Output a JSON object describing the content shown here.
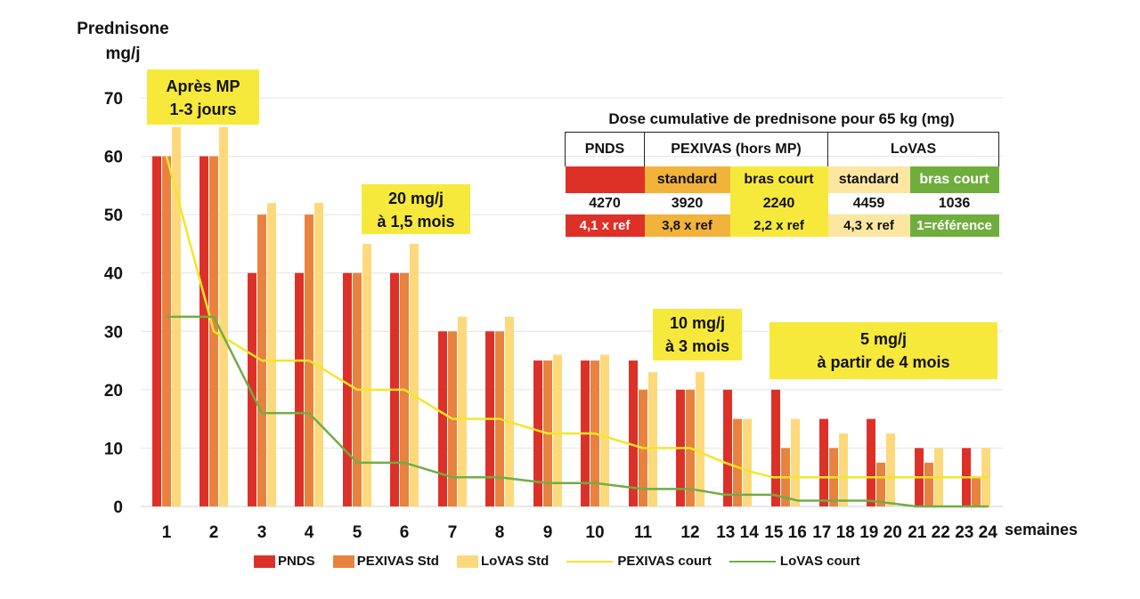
{
  "y_axis_title_line1": "Prednisone",
  "y_axis_title_line2": "mg/j",
  "x_axis_unit": "semaines",
  "annotations": {
    "mp": [
      "Après MP",
      "1-3 jours"
    ],
    "m15": [
      "20 mg/j",
      "à 1,5 mois"
    ],
    "m3": [
      "10 mg/j",
      "à 3 mois"
    ],
    "m4": [
      "5 mg/j",
      "à partir de 4 mois"
    ]
  },
  "dose_table": {
    "title": "Dose cumulative de prednisone pour 65 kg (mg)",
    "headers": [
      "PNDS",
      "PEXIVAS (hors MP)",
      "LoVAS"
    ],
    "subheaders": [
      "",
      "standard",
      "bras court",
      "standard",
      "bras court"
    ],
    "values": [
      "4270",
      "3920",
      "2240",
      "4459",
      "1036"
    ],
    "ratios": [
      "4,1 x ref",
      "3,8 x ref",
      "2,2 x ref",
      "4,3 x ref",
      "1=référence"
    ],
    "colors": [
      "#dd3128",
      "#f2b33a",
      "#f7e93b",
      "#fde7a0",
      "#6fae3d"
    ]
  },
  "colors": {
    "PNDS": "#dd3128",
    "PEXIVAS Std": "#e8823e",
    "LoVAS Std": "#fdd97c",
    "PEXIVAS court": "#f2e62a",
    "LoVAS court": "#71ac45",
    "annotation": "#f7e93b"
  },
  "chart_data": {
    "type": "bar",
    "title": "",
    "xlabel": "semaines",
    "ylabel": "Prednisone mg/j",
    "ylim": [
      0,
      70
    ],
    "yticks": [
      0,
      10,
      20,
      30,
      40,
      50,
      60,
      70
    ],
    "grid": true,
    "categories": [
      "1",
      "2",
      "3",
      "4",
      "5",
      "6",
      "7",
      "8",
      "9",
      "10",
      "11",
      "12",
      "13",
      "14",
      "15",
      "16",
      "17",
      "18",
      "19",
      "20",
      "21",
      "22",
      "23",
      "24"
    ],
    "group_labels": [
      "1",
      "2",
      "3",
      "4",
      "5",
      "6",
      "7",
      "8",
      "9",
      "10",
      "11",
      "12",
      "13 14",
      "15 16",
      "17 18",
      "19 20",
      "21 22",
      "23 24"
    ],
    "bar_series": [
      {
        "name": "PNDS",
        "values": [
          60,
          60,
          40,
          40,
          40,
          40,
          30,
          30,
          25,
          25,
          25,
          20,
          20,
          20,
          15,
          15,
          10,
          10
        ]
      },
      {
        "name": "PEXIVAS Std",
        "values": [
          60,
          60,
          50,
          50,
          40,
          40,
          30,
          30,
          25,
          25,
          20,
          20,
          15,
          10,
          10,
          7.5,
          7.5,
          5
        ]
      },
      {
        "name": "LoVAS Std",
        "values": [
          65,
          65,
          52,
          52,
          45,
          45,
          32.5,
          32.5,
          26,
          26,
          23,
          23,
          15,
          15,
          12.5,
          12.5,
          10,
          10
        ]
      }
    ],
    "line_series": [
      {
        "name": "PEXIVAS court",
        "x": [
          1,
          2,
          3,
          4,
          5,
          6,
          7,
          8,
          9,
          10,
          11,
          12,
          13,
          14,
          15,
          16,
          17,
          18,
          19,
          20,
          21,
          22,
          23,
          24
        ],
        "values": [
          60,
          30,
          25,
          25,
          20,
          20,
          15,
          15,
          12.5,
          12.5,
          10,
          10,
          7.5,
          6,
          5,
          5,
          5,
          5,
          5,
          5,
          5,
          5,
          5,
          5
        ]
      },
      {
        "name": "LoVAS court",
        "x": [
          1,
          2,
          3,
          4,
          5,
          6,
          7,
          8,
          9,
          10,
          11,
          12,
          13,
          14,
          15,
          16,
          17,
          18,
          19,
          20,
          21,
          22,
          23,
          24
        ],
        "values": [
          32.5,
          32.5,
          16,
          16,
          7.5,
          7.5,
          5,
          5,
          4,
          4,
          3,
          3,
          2,
          2,
          2,
          1,
          1,
          1,
          1,
          0.5,
          0,
          0,
          0,
          0
        ]
      }
    ],
    "legend": [
      "PNDS",
      "PEXIVAS Std",
      "LoVAS Std",
      "PEXIVAS court",
      "LoVAS court"
    ],
    "legend_position": "bottom"
  }
}
